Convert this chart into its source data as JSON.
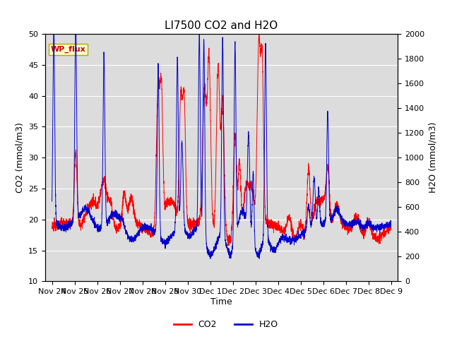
{
  "title": "LI7500 CO2 and H2O",
  "xlabel": "Time",
  "ylabel_left": "CO2 (mmol/m3)",
  "ylabel_right": "H2O (mmol/m3)",
  "ylim_left": [
    10,
    50
  ],
  "ylim_right": [
    0,
    2000
  ],
  "yticks_left": [
    10,
    15,
    20,
    25,
    30,
    35,
    40,
    45,
    50
  ],
  "yticks_right": [
    0,
    200,
    400,
    600,
    800,
    1000,
    1200,
    1400,
    1600,
    1800,
    2000
  ],
  "xtick_labels": [
    "Nov 24",
    "Nov 25",
    "Nov 26",
    "Nov 27",
    "Nov 28",
    "Nov 29",
    "Nov 30",
    "Dec 1",
    "Dec 2",
    "Dec 3",
    "Dec 4",
    "Dec 5",
    "Dec 6",
    "Dec 7",
    "Dec 8",
    "Dec 9"
  ],
  "co2_color": "#FF0000",
  "h2o_color": "#0000CC",
  "plot_bg_color": "#DCDCDC",
  "annotation_text": "WP_flux",
  "annotation_color": "#CC0000",
  "annotation_bg": "#FFFFCC",
  "legend_labels": [
    "CO2",
    "H2O"
  ],
  "title_fontsize": 11,
  "tick_fontsize": 8,
  "label_fontsize": 9
}
